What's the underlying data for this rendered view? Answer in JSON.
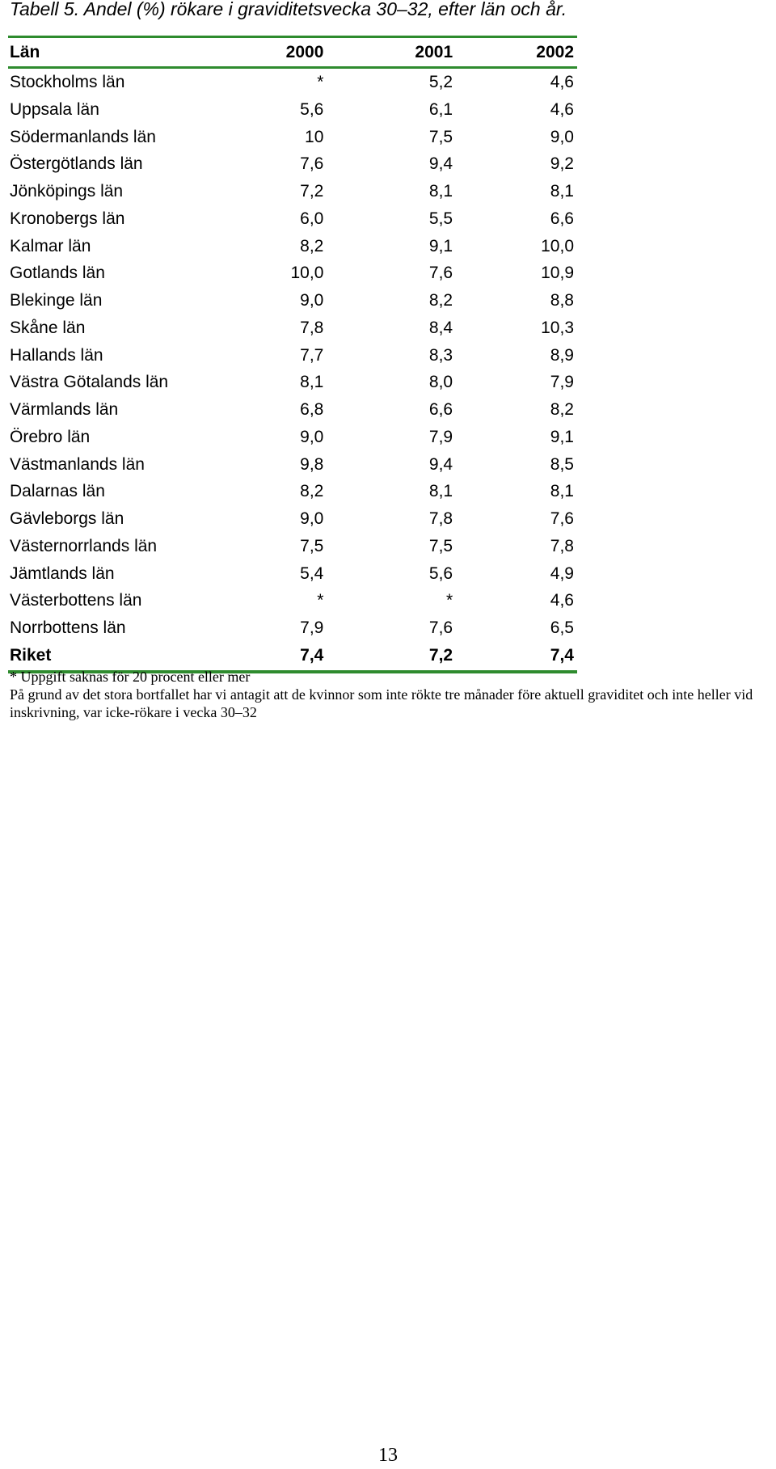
{
  "caption": "Tabell 5. Andel (%) rökare i graviditetsvecka 30–32, efter län och år.",
  "table": {
    "headers": [
      "Län",
      "2000",
      "2001",
      "2002"
    ],
    "rows": [
      [
        "Stockholms län",
        "*",
        "5,2",
        "4,6"
      ],
      [
        "Uppsala län",
        "5,6",
        "6,1",
        "4,6"
      ],
      [
        "Södermanlands län",
        "10",
        "7,5",
        "9,0"
      ],
      [
        "Östergötlands län",
        "7,6",
        "9,4",
        "9,2"
      ],
      [
        "Jönköpings län",
        "7,2",
        "8,1",
        "8,1"
      ],
      [
        "Kronobergs län",
        "6,0",
        "5,5",
        "6,6"
      ],
      [
        "Kalmar län",
        "8,2",
        "9,1",
        "10,0"
      ],
      [
        "Gotlands län",
        "10,0",
        "7,6",
        "10,9"
      ],
      [
        "Blekinge län",
        "9,0",
        "8,2",
        "8,8"
      ],
      [
        "Skåne län",
        "7,8",
        "8,4",
        "10,3"
      ],
      [
        "Hallands län",
        "7,7",
        "8,3",
        "8,9"
      ],
      [
        "Västra Götalands län",
        "8,1",
        "8,0",
        "7,9"
      ],
      [
        "Värmlands län",
        "6,8",
        "6,6",
        "8,2"
      ],
      [
        "Örebro län",
        "9,0",
        "7,9",
        "9,1"
      ],
      [
        "Västmanlands län",
        "9,8",
        "9,4",
        "8,5"
      ],
      [
        "Dalarnas län",
        "8,2",
        "8,1",
        "8,1"
      ],
      [
        "Gävleborgs län",
        "9,0",
        "7,8",
        "7,6"
      ],
      [
        "Västernorrlands län",
        "7,5",
        "7,5",
        "7,8"
      ],
      [
        "Jämtlands län",
        "5,4",
        "5,6",
        "4,9"
      ],
      [
        "Västerbottens län",
        "*",
        "*",
        "4,6"
      ],
      [
        "Norrbottens län",
        "7,9",
        "7,6",
        "6,5"
      ]
    ],
    "total": [
      "Riket",
      "7,4",
      "7,2",
      "7,4"
    ],
    "rule_color": "#2e8b2e"
  },
  "notes": [
    "* Uppgift saknas för 20 procent eller mer",
    "På grund av det stora bortfallet har vi antagit att de kvinnor som inte rökte tre månader före aktuell graviditet och inte heller vid inskrivning, var icke-rökare i vecka 30–32"
  ],
  "page_number": "13"
}
